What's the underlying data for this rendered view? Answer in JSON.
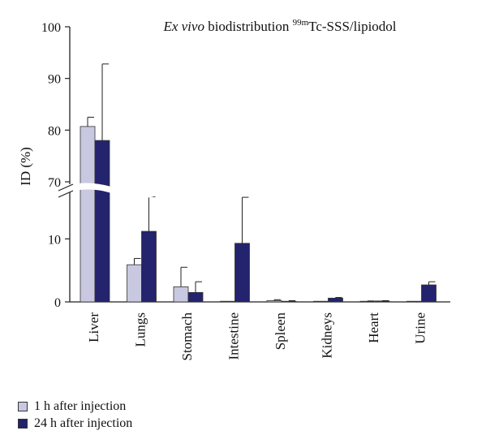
{
  "chart_data": {
    "type": "bar",
    "title_italic": "Ex vivo",
    "title_main": " biodistribution ",
    "title_sup": "99m",
    "title_rest": "Tc-SSS/lipiodol",
    "ylabel": "ID (%)",
    "xlabel": "",
    "categories": [
      "Liver",
      "Lungs",
      "Stomach",
      "Intestine",
      "Spleen",
      "Kidneys",
      "Heart",
      "Urine"
    ],
    "y_ticks_upper": [
      "70",
      "80",
      "90",
      "100"
    ],
    "y_ticks_lower": [
      "0",
      "10"
    ],
    "ylim_upper": [
      70,
      100
    ],
    "ylim_lower": [
      0,
      17
    ],
    "broken_axis": true,
    "grid": false,
    "legend_position": "bottom-left",
    "series": [
      {
        "name": "1 h after injection",
        "color": "#c8c8e0",
        "values": [
          80.7,
          5.9,
          2.4,
          0.05,
          0.2,
          0.05,
          0.1,
          0.0
        ],
        "errors": [
          1.8,
          1.0,
          3.1,
          0.0,
          0.15,
          0.0,
          0.05,
          0.0
        ]
      },
      {
        "name": "24 h after injection",
        "color": "#23236e",
        "values": [
          78.0,
          11.2,
          1.5,
          9.3,
          0.1,
          0.6,
          0.15,
          2.7
        ],
        "errors": [
          14.8,
          5.5,
          1.7,
          7.3,
          0.1,
          0.1,
          0.05,
          0.5
        ]
      }
    ]
  }
}
